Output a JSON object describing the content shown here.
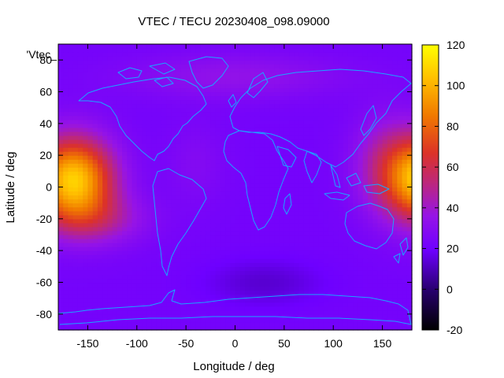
{
  "chart_data": {
    "type": "heatmap",
    "title": "VTEC / TECU 20230408_098.09000",
    "xlabel": "Longitude / deg",
    "ylabel": "Latitude / deg",
    "key_label": "'Vtec_",
    "xlim": [
      -180,
      180
    ],
    "ylim": [
      -90,
      90
    ],
    "x_ticks": [
      -150,
      -100,
      -50,
      0,
      50,
      100,
      150
    ],
    "y_ticks": [
      -80,
      -60,
      -40,
      -20,
      0,
      20,
      40,
      60,
      80
    ],
    "colorbar": {
      "range": [
        -20,
        120
      ],
      "ticks": [
        -20,
        0,
        20,
        40,
        60,
        80,
        100,
        120
      ]
    },
    "field": {
      "background": 22,
      "components": [
        {
          "lon": -165,
          "lat": 5,
          "amp": 85,
          "sx": 40,
          "sy": 26
        },
        {
          "lon": 195,
          "lat": 5,
          "amp": 85,
          "sx": 40,
          "sy": 26
        },
        {
          "lon": -140,
          "lat": -20,
          "amp": 20,
          "sx": 50,
          "sy": 16
        },
        {
          "lon": 155,
          "lat": 15,
          "amp": 20,
          "sx": 35,
          "sy": 30
        },
        {
          "lon": 0,
          "lat": 70,
          "amp": 12,
          "sx": 110,
          "sy": 14
        },
        {
          "lon": 30,
          "lat": -60,
          "amp": -9,
          "sx": 60,
          "sy": 15
        },
        {
          "lon": -40,
          "lat": 15,
          "amp": 6,
          "sx": 30,
          "sy": 25
        }
      ]
    },
    "colors": {
      "coastline": "#1aa6ff"
    }
  }
}
